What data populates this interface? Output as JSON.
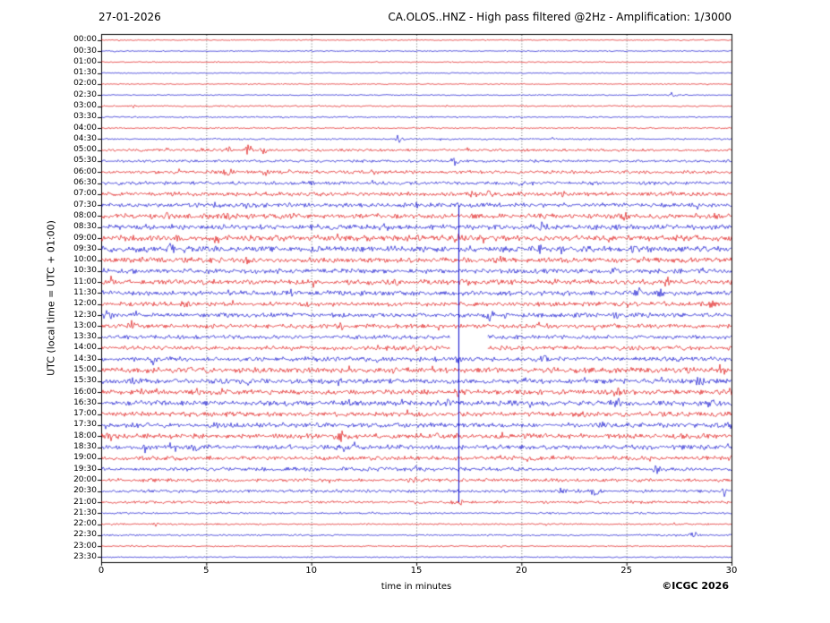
{
  "header": {
    "date": "27-01-2026",
    "title": "CA.OLOS..HNZ - High pass filtered @2Hz - Amplification: 1/3000"
  },
  "footer": {
    "copyright": "©ICGC 2026"
  },
  "chart_data": {
    "type": "line",
    "subtype": "helicorder-seismogram",
    "station": "CA.OLOS..HNZ",
    "date": "27-01-2026",
    "filter": "High pass filtered @2Hz",
    "amplification": "1/3000",
    "xlabel": "time in minutes",
    "ylabel": "UTC (local time = UTC + 01:00)",
    "xlim": [
      0,
      30
    ],
    "minutes_per_row": 30,
    "x_ticks": [
      0,
      5,
      10,
      15,
      20,
      25,
      30
    ],
    "grid": "dotted-vertical-at-5min",
    "colors": {
      "red": "#dd0000",
      "blue": "#0000cc",
      "frame": "#000000",
      "grid": "#444444"
    },
    "big_event": {
      "x_minutes": 17.0,
      "origin_row_label": "13:30",
      "line_start_row": 15,
      "line_end_row": 42,
      "color": "blue",
      "gap": {
        "x_from": 16.6,
        "x_to": 18.4,
        "row_from": 27,
        "row_to": 28
      }
    },
    "rows": [
      {
        "label": "00:00",
        "color": "red",
        "amp": 0.35,
        "spikes": []
      },
      {
        "label": "00:30",
        "color": "blue",
        "amp": 0.35,
        "spikes": []
      },
      {
        "label": "01:00",
        "color": "red",
        "amp": 0.35,
        "spikes": []
      },
      {
        "label": "01:30",
        "color": "blue",
        "amp": 0.35,
        "spikes": []
      },
      {
        "label": "02:00",
        "color": "red",
        "amp": 0.35,
        "spikes": []
      },
      {
        "label": "02:30",
        "color": "blue",
        "amp": 0.35,
        "spikes": [
          [
            27.2,
            2.2
          ]
        ]
      },
      {
        "label": "03:00",
        "color": "red",
        "amp": 0.45,
        "spikes": [
          [
            1.5,
            1.0
          ]
        ]
      },
      {
        "label": "03:30",
        "color": "blue",
        "amp": 0.45,
        "spikes": []
      },
      {
        "label": "04:00",
        "color": "red",
        "amp": 0.45,
        "spikes": []
      },
      {
        "label": "04:30",
        "color": "blue",
        "amp": 0.5,
        "spikes": [
          [
            14.2,
            2.4
          ]
        ]
      },
      {
        "label": "05:00",
        "color": "red",
        "amp": 0.8,
        "spikes": [
          [
            3.0,
            1.8
          ],
          [
            4.6,
            2.0
          ],
          [
            6.0,
            2.4
          ],
          [
            7.0,
            2.4
          ],
          [
            7.8,
            2.0
          ]
        ]
      },
      {
        "label": "05:30",
        "color": "blue",
        "amp": 0.8,
        "spikes": [
          [
            16.8,
            1.8
          ]
        ]
      },
      {
        "label": "06:00",
        "color": "red",
        "amp": 1.0,
        "spikes": [
          [
            6.0,
            2.4
          ],
          [
            7.8,
            2.0
          ],
          [
            13.0,
            1.2
          ]
        ]
      },
      {
        "label": "06:30",
        "color": "blue",
        "amp": 1.0,
        "spikes": [
          [
            10.0,
            2.0
          ],
          [
            20.0,
            1.0
          ]
        ]
      },
      {
        "label": "07:00",
        "color": "red",
        "amp": 1.2,
        "spikes": [
          [
            17.6,
            3.2
          ],
          [
            18.4,
            2.8
          ],
          [
            22.0,
            1.4
          ],
          [
            27.0,
            1.4
          ]
        ]
      },
      {
        "label": "07:30",
        "color": "blue",
        "amp": 1.3,
        "spikes": [
          [
            5.5,
            2.0
          ],
          [
            15.0,
            1.6
          ]
        ]
      },
      {
        "label": "08:00",
        "color": "red",
        "amp": 1.5,
        "spikes": [
          [
            3.0,
            1.8
          ],
          [
            6.0,
            1.8
          ],
          [
            9.0,
            2.0
          ],
          [
            25.0,
            1.4
          ]
        ]
      },
      {
        "label": "08:30",
        "color": "blue",
        "amp": 1.5,
        "spikes": [
          [
            4.0,
            1.6
          ],
          [
            13.5,
            1.6
          ],
          [
            21.0,
            1.4
          ]
        ]
      },
      {
        "label": "09:00",
        "color": "red",
        "amp": 1.7,
        "spikes": [
          [
            5.5,
            1.8
          ],
          [
            17.0,
            2.8
          ],
          [
            20.0,
            1.8
          ]
        ]
      },
      {
        "label": "09:30",
        "color": "blue",
        "amp": 1.7,
        "spikes": [
          [
            3.3,
            2.4
          ],
          [
            17.5,
            2.0
          ],
          [
            21.0,
            2.0
          ],
          [
            25.5,
            2.4
          ]
        ]
      },
      {
        "label": "10:00",
        "color": "red",
        "amp": 1.5,
        "spikes": [
          [
            7.0,
            1.4
          ],
          [
            19.0,
            1.4
          ]
        ]
      },
      {
        "label": "10:30",
        "color": "blue",
        "amp": 1.4,
        "spikes": [
          [
            24.5,
            2.0
          ],
          [
            28.5,
            1.6
          ]
        ]
      },
      {
        "label": "11:00",
        "color": "red",
        "amp": 1.5,
        "spikes": [
          [
            0.5,
            2.4
          ],
          [
            14.0,
            1.4
          ],
          [
            27.0,
            2.0
          ]
        ]
      },
      {
        "label": "11:30",
        "color": "blue",
        "amp": 1.4,
        "spikes": [
          [
            9.0,
            2.0
          ],
          [
            11.0,
            2.0
          ],
          [
            25.5,
            2.4
          ],
          [
            26.5,
            2.4
          ]
        ]
      },
      {
        "label": "12:00",
        "color": "red",
        "amp": 1.3,
        "spikes": [
          [
            4.0,
            1.2
          ],
          [
            29.0,
            1.4
          ]
        ]
      },
      {
        "label": "12:30",
        "color": "blue",
        "amp": 1.3,
        "spikes": [
          [
            0.3,
            2.4
          ],
          [
            18.5,
            2.0
          ],
          [
            24.5,
            1.6
          ]
        ]
      },
      {
        "label": "13:00",
        "color": "red",
        "amp": 1.3,
        "spikes": [
          [
            1.5,
            2.8
          ],
          [
            11.5,
            2.0
          ],
          [
            21.0,
            1.6
          ]
        ]
      },
      {
        "label": "13:30",
        "color": "blue",
        "amp": 1.2,
        "spikes": []
      },
      {
        "label": "14:00",
        "color": "red",
        "amp": 1.3,
        "spikes": [
          [
            13.0,
            1.4
          ],
          [
            15.0,
            1.4
          ]
        ]
      },
      {
        "label": "14:30",
        "color": "blue",
        "amp": 1.4,
        "spikes": [
          [
            2.5,
            2.0
          ],
          [
            13.0,
            1.6
          ],
          [
            17.0,
            1.6
          ],
          [
            21.0,
            1.4
          ]
        ]
      },
      {
        "label": "15:00",
        "color": "red",
        "amp": 1.6,
        "spikes": [
          [
            5.0,
            1.4
          ],
          [
            28.0,
            2.4
          ],
          [
            29.5,
            2.8
          ]
        ]
      },
      {
        "label": "15:30",
        "color": "blue",
        "amp": 1.5,
        "spikes": [
          [
            1.5,
            2.0
          ],
          [
            7.0,
            1.4
          ],
          [
            28.5,
            2.4
          ]
        ]
      },
      {
        "label": "16:00",
        "color": "red",
        "amp": 1.5,
        "spikes": [
          [
            4.5,
            2.0
          ],
          [
            17.0,
            1.4
          ],
          [
            24.5,
            2.0
          ]
        ]
      },
      {
        "label": "16:30",
        "color": "blue",
        "amp": 1.5,
        "spikes": [
          [
            16.5,
            2.0
          ],
          [
            24.5,
            2.4
          ],
          [
            29.0,
            2.0
          ]
        ]
      },
      {
        "label": "17:00",
        "color": "red",
        "amp": 1.4,
        "spikes": [
          [
            8.0,
            1.2
          ],
          [
            23.0,
            1.2
          ]
        ]
      },
      {
        "label": "17:30",
        "color": "blue",
        "amp": 1.4,
        "spikes": [
          [
            5.5,
            1.6
          ],
          [
            29.8,
            2.4
          ]
        ]
      },
      {
        "label": "18:00",
        "color": "red",
        "amp": 1.5,
        "spikes": [
          [
            0.5,
            2.0
          ],
          [
            11.5,
            2.4
          ],
          [
            16.0,
            2.0
          ],
          [
            19.0,
            1.6
          ]
        ]
      },
      {
        "label": "18:30",
        "color": "blue",
        "amp": 1.4,
        "spikes": [
          [
            2.0,
            2.0
          ],
          [
            4.5,
            2.0
          ],
          [
            11.5,
            2.0
          ]
        ]
      },
      {
        "label": "19:00",
        "color": "red",
        "amp": 1.2,
        "spikes": [
          [
            21.5,
            1.6
          ],
          [
            26.0,
            1.2
          ]
        ]
      },
      {
        "label": "19:30",
        "color": "blue",
        "amp": 1.1,
        "spikes": [
          [
            15.0,
            1.6
          ],
          [
            26.5,
            2.4
          ]
        ]
      },
      {
        "label": "20:00",
        "color": "red",
        "amp": 1.0,
        "spikes": [
          [
            2.3,
            2.0
          ],
          [
            14.8,
            1.6
          ]
        ]
      },
      {
        "label": "20:30",
        "color": "blue",
        "amp": 0.9,
        "spikes": [
          [
            22.0,
            2.0
          ],
          [
            23.5,
            2.0
          ],
          [
            29.6,
            2.4
          ]
        ]
      },
      {
        "label": "21:00",
        "color": "red",
        "amp": 0.8,
        "spikes": [
          [
            17.0,
            1.4
          ]
        ]
      },
      {
        "label": "21:30",
        "color": "blue",
        "amp": 0.55,
        "spikes": []
      },
      {
        "label": "22:00",
        "color": "red",
        "amp": 0.5,
        "spikes": [
          [
            2.5,
            2.0
          ]
        ]
      },
      {
        "label": "22:30",
        "color": "blue",
        "amp": 0.5,
        "spikes": [
          [
            28.2,
            2.4
          ]
        ]
      },
      {
        "label": "23:00",
        "color": "red",
        "amp": 0.4,
        "spikes": []
      },
      {
        "label": "23:30",
        "color": "blue",
        "amp": 0.4,
        "spikes": []
      }
    ]
  }
}
